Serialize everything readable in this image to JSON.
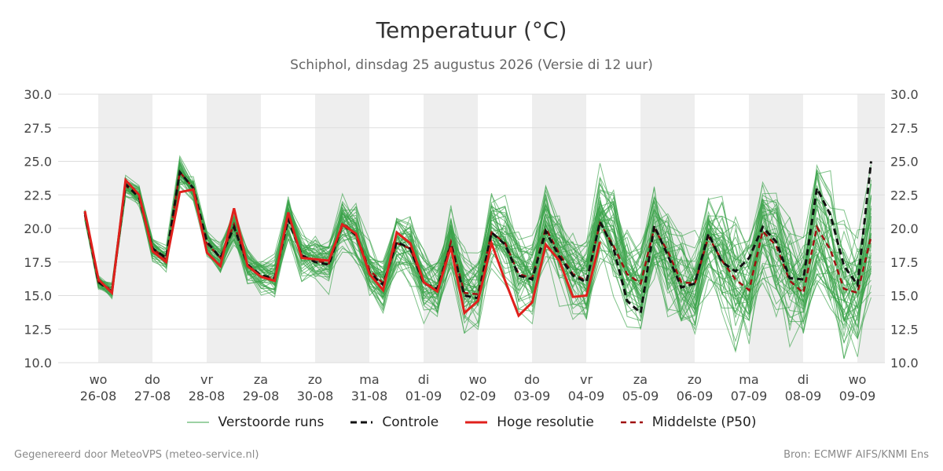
{
  "header": {
    "title": "Temperatuur (°C)",
    "subtitle": "Schiphol, dinsdag 25 augustus 2026 (Versie di 12 uur)"
  },
  "footer": {
    "left": "Gegenereerd door MeteoVPS (meteo-service.nl)",
    "right": "Bron: ECMWF AIFS/KNMI Ens"
  },
  "legend": [
    {
      "label": "Verstoorde runs",
      "color": "#3aa34a",
      "style": "thin-solid"
    },
    {
      "label": "Controle",
      "color": "#111111",
      "style": "dashed"
    },
    {
      "label": "Hoge resolutie",
      "color": "#e0201c",
      "style": "solid"
    },
    {
      "label": "Middelste (P50)",
      "color": "#a01010",
      "style": "dashed"
    }
  ],
  "colors": {
    "ensemble": "#3aa34a",
    "control": "#111111",
    "high_res": "#e0201c",
    "median": "#a01010",
    "weekend_band": "#eeeeee",
    "grid": "#dddddd"
  },
  "chart_data": {
    "type": "line",
    "title": "Temperatuur (°C)",
    "subtitle": "Schiphol, dinsdag 25 augustus 2026 (Versie di 12 uur)",
    "ylim": [
      10,
      30
    ],
    "yticks": [
      "10.0",
      "12.5",
      "15.0",
      "17.5",
      "20.0",
      "22.5",
      "25.0",
      "27.5",
      "30.0"
    ],
    "xticks": [
      {
        "day": "wo",
        "date": "26-08"
      },
      {
        "day": "do",
        "date": "27-08"
      },
      {
        "day": "vr",
        "date": "28-08"
      },
      {
        "day": "za",
        "date": "29-08"
      },
      {
        "day": "zo",
        "date": "30-08"
      },
      {
        "day": "ma",
        "date": "31-08"
      },
      {
        "day": "di",
        "date": "01-09"
      },
      {
        "day": "wo",
        "date": "02-09"
      },
      {
        "day": "do",
        "date": "03-09"
      },
      {
        "day": "vr",
        "date": "04-09"
      },
      {
        "day": "za",
        "date": "05-09"
      },
      {
        "day": "zo",
        "date": "06-09"
      },
      {
        "day": "ma",
        "date": "07-09"
      },
      {
        "day": "di",
        "date": "08-09"
      },
      {
        "day": "wo",
        "date": "09-09"
      }
    ],
    "grid": true,
    "legend_position": "bottom",
    "ensemble_members": 50,
    "series": [
      {
        "name": "Controle",
        "values": [
          21.2,
          16.0,
          15.3,
          23.3,
          22.3,
          18.5,
          17.8,
          24.2,
          23.0,
          19.0,
          17.8,
          20.1,
          17.3,
          16.5,
          16.3,
          20.7,
          18.0,
          17.5,
          17.3,
          20.3,
          19.5,
          16.7,
          15.8,
          19.0,
          18.5,
          15.9,
          15.5,
          18.8,
          15.0,
          14.8,
          19.7,
          18.8,
          16.5,
          16.2,
          19.8,
          17.9,
          16.5,
          16.0,
          20.5,
          18.5,
          14.6,
          13.7,
          20.2,
          18.0,
          15.6,
          15.9,
          19.6,
          17.5,
          16.8,
          17.8,
          20.1,
          19.0,
          16.3,
          16.2,
          23.0,
          21.0,
          17.2,
          15.8,
          25.0
        ]
      },
      {
        "name": "Hoge resolutie",
        "values": [
          21.3,
          16.2,
          15.2,
          23.6,
          22.5,
          18.3,
          17.5,
          22.7,
          22.9,
          18.2,
          17.2,
          21.5,
          17.2,
          16.4,
          16.1,
          21.2,
          17.8,
          17.7,
          17.6,
          20.3,
          19.6,
          16.6,
          15.4,
          19.7,
          18.9,
          16.0,
          15.3,
          18.6,
          13.7,
          14.6,
          18.9,
          16.1,
          13.5,
          14.5,
          18.8,
          17.6,
          14.9,
          15.0,
          19.0,
          null,
          null,
          null,
          null,
          null,
          null,
          null,
          null,
          null,
          null,
          null,
          null,
          null,
          null,
          null,
          null,
          null,
          null,
          null,
          null
        ]
      },
      {
        "name": "Middelste (P50)",
        "values": [
          21.0,
          16.0,
          15.4,
          23.2,
          22.4,
          18.5,
          17.7,
          24.2,
          23.0,
          18.9,
          17.8,
          20.3,
          17.3,
          16.4,
          16.3,
          20.9,
          18.0,
          17.6,
          17.4,
          20.4,
          19.6,
          16.9,
          15.9,
          18.9,
          18.5,
          15.9,
          15.4,
          19.0,
          15.2,
          15.1,
          19.7,
          18.9,
          16.6,
          16.3,
          20.0,
          18.1,
          16.6,
          16.1,
          20.4,
          18.7,
          16.6,
          15.9,
          20.0,
          18.3,
          16.0,
          15.9,
          19.4,
          17.6,
          16.2,
          15.4,
          19.8,
          18.7,
          16.1,
          15.2,
          20.1,
          18.4,
          15.5,
          15.2,
          19.4
        ]
      }
    ]
  }
}
